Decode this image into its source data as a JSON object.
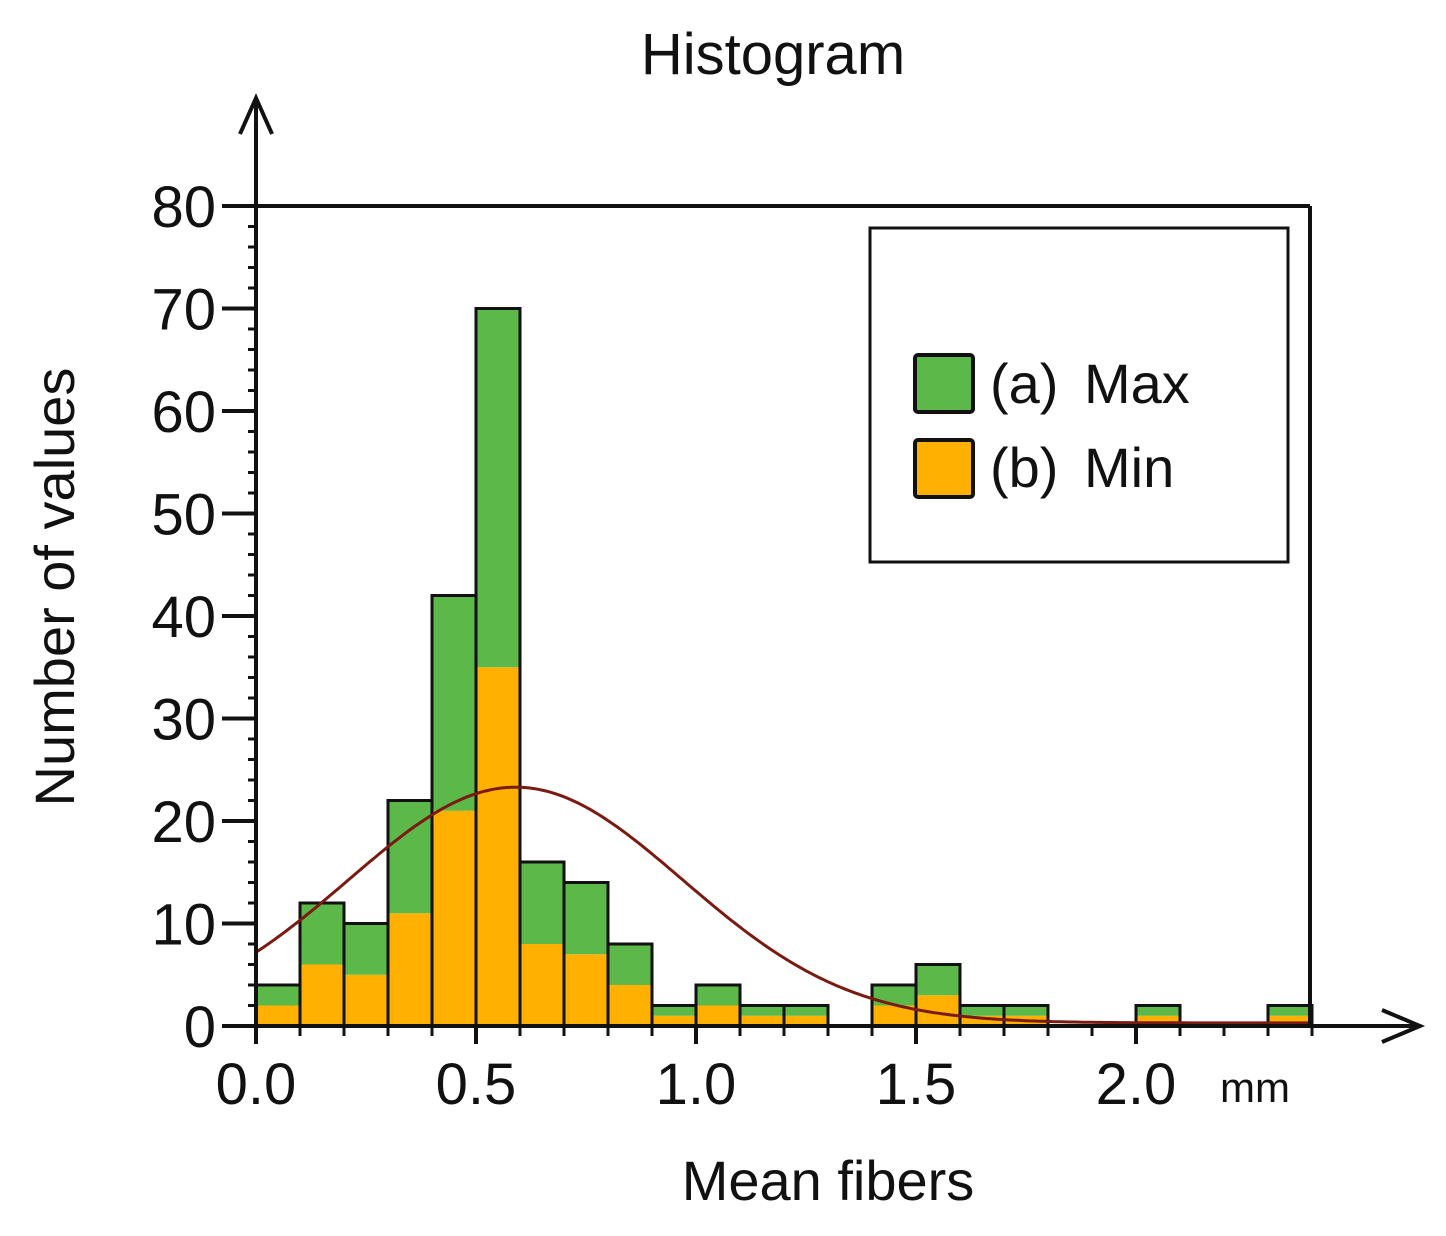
{
  "chart_data": {
    "type": "bar",
    "stacked": true,
    "title": "Histogram",
    "xlabel": "Mean fibers",
    "ylabel": "Number of values",
    "x_unit": "mm",
    "xlim": [
      0.0,
      2.4
    ],
    "ylim": [
      0,
      80
    ],
    "bin_width": 0.1,
    "x_ticks": [
      0.0,
      0.5,
      1.0,
      1.5,
      2.0
    ],
    "x_tick_labels": [
      "0.0",
      "0.5",
      "1.0",
      "1.5",
      "2.0"
    ],
    "y_ticks": [
      0,
      10,
      20,
      30,
      40,
      50,
      60,
      70,
      80
    ],
    "y_tick_labels": [
      "0",
      "10",
      "20",
      "30",
      "40",
      "50",
      "60",
      "70",
      "80"
    ],
    "bins_start": [
      0.0,
      0.1,
      0.2,
      0.3,
      0.4,
      0.5,
      0.6,
      0.7,
      0.8,
      0.9,
      1.0,
      1.1,
      1.2,
      1.4,
      1.5,
      1.6,
      1.7,
      2.0,
      2.3
    ],
    "series": [
      {
        "name": "(b) Min",
        "color": "#ffb000",
        "values": [
          2,
          6,
          5,
          11,
          21,
          35,
          8,
          7,
          4,
          1,
          2,
          1,
          1,
          2,
          3,
          1,
          1,
          1,
          1
        ]
      },
      {
        "name": "(a) Max",
        "color": "#5cb848",
        "values": [
          2,
          6,
          5,
          11,
          21,
          35,
          8,
          7,
          4,
          1,
          2,
          1,
          1,
          2,
          3,
          1,
          1,
          1,
          1
        ]
      }
    ],
    "totals": [
      4,
      12,
      10,
      22,
      42,
      70,
      16,
      14,
      8,
      2,
      4,
      2,
      2,
      4,
      6,
      2,
      2,
      2,
      2
    ],
    "fit_curve": {
      "type": "normal",
      "color": "#7a1a10",
      "peak_x": 0.59,
      "peak_y": 23.3,
      "sigma": 0.38,
      "baseline": 0.3
    },
    "legend": {
      "position": "top-right",
      "entries": [
        {
          "label": "(a) Max",
          "color": "#5cb848"
        },
        {
          "label": "(b) Min",
          "color": "#ffb000"
        }
      ]
    },
    "grid": false
  }
}
